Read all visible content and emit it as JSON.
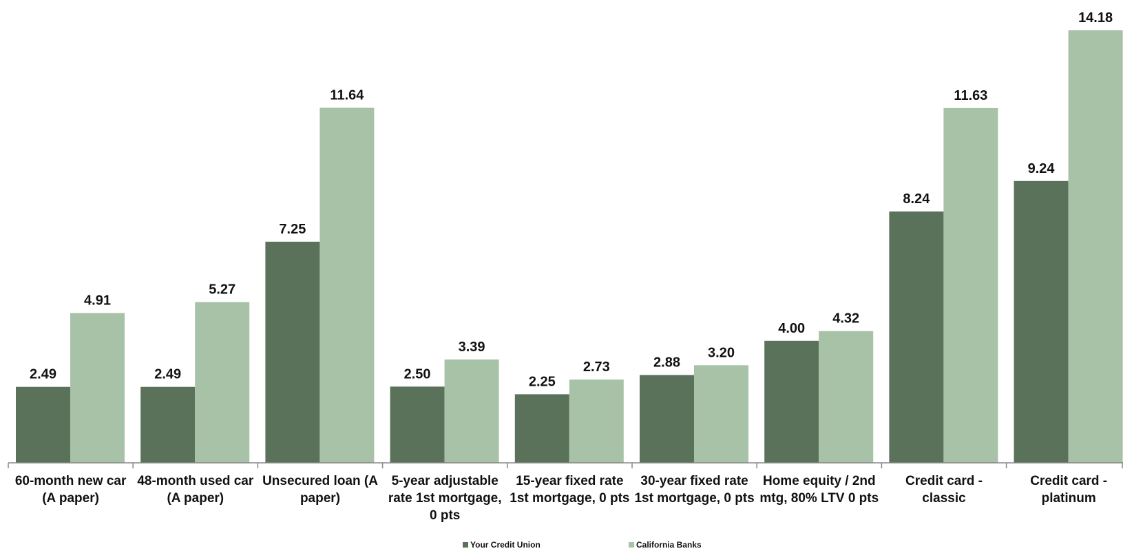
{
  "chart_data": {
    "type": "bar",
    "categories": [
      "60-month new car (A paper)",
      "48-month used car (A paper)",
      "Unsecured loan (A paper)",
      "5-year adjustable rate 1st mortgage, 0 pts",
      "15-year fixed rate 1st mortgage, 0 pts",
      "30-year fixed rate 1st mortgage, 0 pts",
      "Home equity / 2nd mtg, 80% LTV 0 pts",
      "Credit card - classic",
      "Credit card - platinum"
    ],
    "series": [
      {
        "name": "Your Credit Union",
        "color": "#5a7259",
        "values": [
          2.49,
          2.49,
          7.25,
          2.5,
          2.25,
          2.88,
          4.0,
          8.24,
          9.24
        ],
        "labels": [
          "2.49",
          "2.49",
          "7.25",
          "2.50",
          "2.25",
          "2.88",
          "4.00",
          "8.24",
          "9.24"
        ]
      },
      {
        "name": "California Banks",
        "color": "#a8c2a7",
        "values": [
          4.91,
          5.27,
          11.64,
          3.39,
          2.73,
          3.2,
          4.32,
          11.63,
          14.18
        ],
        "labels": [
          "4.91",
          "5.27",
          "11.64",
          "3.39",
          "2.73",
          "3.20",
          "4.32",
          "11.63",
          "14.18"
        ]
      }
    ],
    "ylim": [
      0,
      14.18
    ],
    "grid": false,
    "legend_position": "bottom",
    "title": "",
    "xlabel": "",
    "ylabel": ""
  }
}
